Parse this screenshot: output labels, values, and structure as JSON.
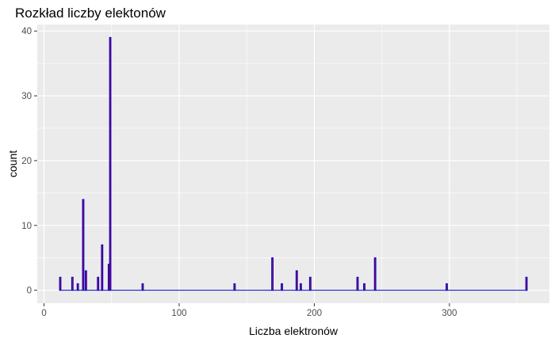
{
  "chart_data": {
    "type": "histogram",
    "title": "Rozkład liczby elektonów",
    "xlabel": "Liczba elektronów",
    "ylabel": "count",
    "xlim": [
      -5,
      374
    ],
    "ylim": [
      -2,
      41
    ],
    "xticks": [
      0,
      100,
      200,
      300
    ],
    "yticks": [
      0,
      10,
      20,
      30,
      40
    ],
    "bin_width": 1,
    "grid": true,
    "background": "#EBEBEB",
    "grid_color": "#FFFFFF",
    "bar_outline_color": "#0000CD",
    "bar_fill_color": "#FF0000",
    "bins": [
      {
        "x": 12,
        "count": 2
      },
      {
        "x": 21,
        "count": 2
      },
      {
        "x": 25,
        "count": 1
      },
      {
        "x": 29,
        "count": 14
      },
      {
        "x": 31,
        "count": 3
      },
      {
        "x": 40,
        "count": 2
      },
      {
        "x": 43,
        "count": 7
      },
      {
        "x": 48,
        "count": 4
      },
      {
        "x": 49,
        "count": 39
      },
      {
        "x": 73,
        "count": 1
      },
      {
        "x": 141,
        "count": 1
      },
      {
        "x": 169,
        "count": 5
      },
      {
        "x": 176,
        "count": 1
      },
      {
        "x": 187,
        "count": 3
      },
      {
        "x": 190,
        "count": 1
      },
      {
        "x": 197,
        "count": 2
      },
      {
        "x": 232,
        "count": 2
      },
      {
        "x": 237,
        "count": 1
      },
      {
        "x": 245,
        "count": 5
      },
      {
        "x": 298,
        "count": 1
      },
      {
        "x": 357,
        "count": 2
      }
    ]
  }
}
